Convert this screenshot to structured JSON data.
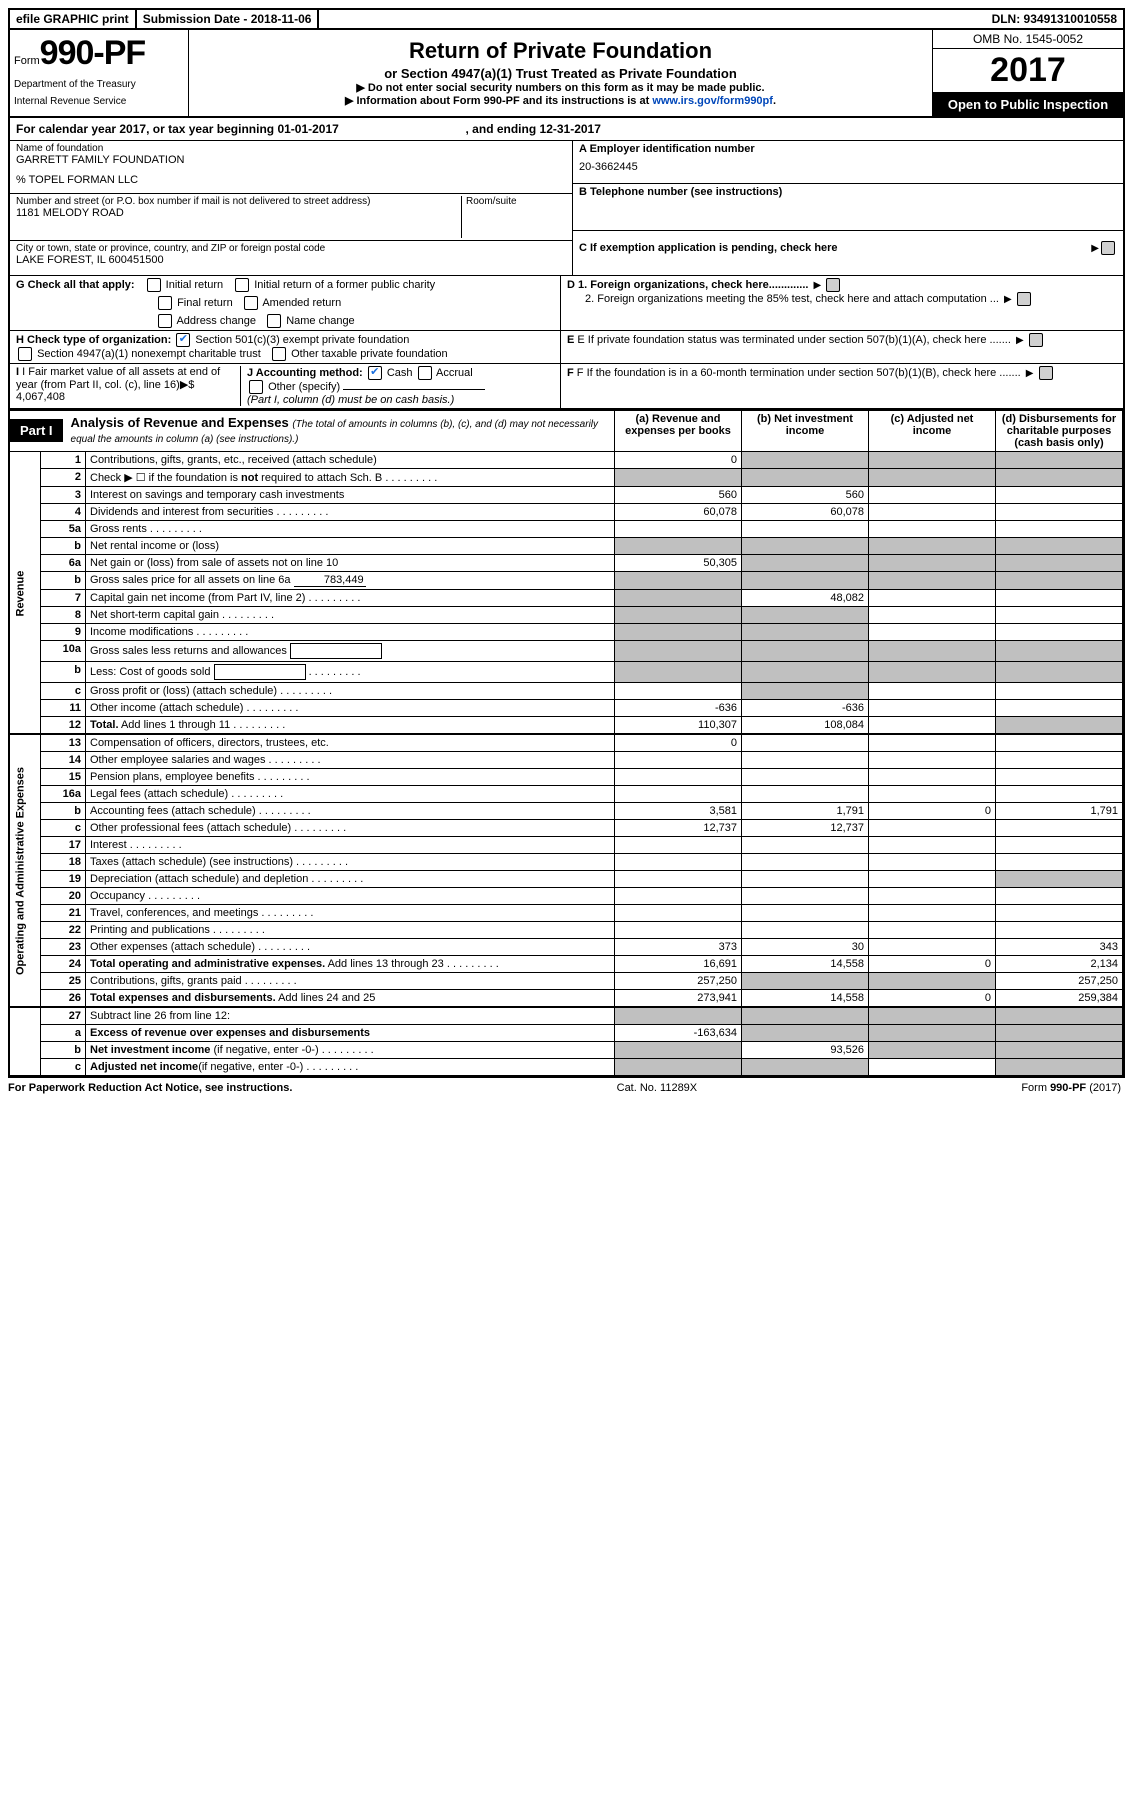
{
  "topbar": {
    "efile": "efile GRAPHIC print",
    "sub": "Submission Date - 2018-11-06",
    "dln": "DLN: 93491310010558"
  },
  "header": {
    "form_prefix": "Form",
    "form_num": "990-PF",
    "dept1": "Department of the Treasury",
    "dept2": "Internal Revenue Service",
    "title": "Return of Private Foundation",
    "subtitle": "or Section 4947(a)(1) Trust Treated as Private Foundation",
    "note1": "▶ Do not enter social security numbers on this form as it may be made public.",
    "note2": "▶ Information about Form 990-PF and its instructions is at ",
    "link": "www.irs.gov/form990pf",
    "omb": "OMB No. 1545-0052",
    "year": "2017",
    "open": "Open to Public Inspection"
  },
  "cal": {
    "text1": "For calendar year 2017, or tax year beginning 01-01-2017",
    "text2": ", and ending 12-31-2017"
  },
  "id": {
    "name_lab": "Name of foundation",
    "name": "GARRETT FAMILY FOUNDATION",
    "care": "% TOPEL FORMAN LLC",
    "addr_lab": "Number and street (or P.O. box number if mail is not delivered to street address)",
    "room_lab": "Room/suite",
    "addr": "1181 MELODY ROAD",
    "city_lab": "City or town, state or province, country, and ZIP or foreign postal code",
    "city": "LAKE FOREST, IL  600451500",
    "a_lab": "A Employer identification number",
    "a": "20-3662445",
    "b_lab": "B Telephone number (see instructions)",
    "c_lab": "C If exemption application is pending, check here",
    "d1": "D 1. Foreign organizations, check here.............",
    "d2": "2. Foreign organizations meeting the 85% test, check here and attach computation ...",
    "e": "E   If private foundation status was terminated under section 507(b)(1)(A), check here .......",
    "f": "F   If the foundation is in a 60-month termination under section 507(b)(1)(B), check here .......",
    "g": "G Check all that apply:",
    "g_opts": [
      "Initial return",
      "Initial return of a former public charity",
      "Final return",
      "Amended return",
      "Address change",
      "Name change"
    ],
    "h": "H Check type of organization:",
    "h1": "Section 501(c)(3) exempt private foundation",
    "h2": "Section 4947(a)(1) nonexempt charitable trust",
    "h3": "Other taxable private foundation",
    "i": "I Fair market value of all assets at end of year (from Part II, col. (c), line 16)▶$  4,067,408",
    "j": "J Accounting method:",
    "j1": "Cash",
    "j2": "Accrual",
    "j3": "Other (specify)",
    "jnote": "(Part I, column (d) must be on cash basis.)"
  },
  "part1": {
    "label": "Part I",
    "title": "Analysis of Revenue and Expenses",
    "note": "(The total of amounts in columns (b), (c), and (d) may not necessarily equal the amounts in column (a) (see instructions).)",
    "col_a": "(a)   Revenue and expenses per books",
    "col_b": "(b)  Net investment income",
    "col_c": "(c)  Adjusted net income",
    "col_d": "(d)  Disbursements for charitable purposes (cash basis only)"
  },
  "sections": {
    "rev": "Revenue",
    "oae": "Operating and Administrative Expenses"
  },
  "rows": [
    {
      "n": "1",
      "d": "Contributions, gifts, grants, etc., received (attach schedule)",
      "a": "0",
      "shade": [
        "b",
        "c",
        "d"
      ]
    },
    {
      "n": "2",
      "d": "Check ▶ ☐ if the foundation is <b>not</b> required to attach Sch. B",
      "dots": true,
      "shade": [
        "a",
        "b",
        "c",
        "d"
      ]
    },
    {
      "n": "3",
      "d": "Interest on savings and temporary cash investments",
      "a": "560",
      "b": "560"
    },
    {
      "n": "4",
      "d": "Dividends and interest from securities",
      "dots": true,
      "a": "60,078",
      "b": "60,078"
    },
    {
      "n": "5a",
      "d": "Gross rents",
      "dots": true
    },
    {
      "n": "b",
      "d": "Net rental income or (loss)",
      "under": true,
      "shade": [
        "a",
        "b",
        "c",
        "d"
      ]
    },
    {
      "n": "6a",
      "d": "Net gain or (loss) from sale of assets not on line 10",
      "a": "50,305",
      "shade": [
        "b",
        "c",
        "d"
      ]
    },
    {
      "n": "b",
      "d": "Gross sales price for all assets on line 6a",
      "inline": "783,449",
      "shade": [
        "a",
        "b",
        "c",
        "d"
      ]
    },
    {
      "n": "7",
      "d": "Capital gain net income (from Part IV, line 2)",
      "dots": true,
      "b": "48,082",
      "shade": [
        "a"
      ]
    },
    {
      "n": "8",
      "d": "Net short-term capital gain",
      "dots": true,
      "shade": [
        "a",
        "b"
      ]
    },
    {
      "n": "9",
      "d": "Income modifications",
      "dots": true,
      "shade": [
        "a",
        "b"
      ]
    },
    {
      "n": "10a",
      "d": "Gross sales less returns and allowances",
      "box": true,
      "shade": [
        "a",
        "b",
        "c",
        "d"
      ]
    },
    {
      "n": "b",
      "d": "Less: Cost of goods sold",
      "dots": true,
      "box": true,
      "shade": [
        "a",
        "b",
        "c",
        "d"
      ]
    },
    {
      "n": "c",
      "d": "Gross profit or (loss) (attach schedule)",
      "dots": true,
      "shade": [
        "b"
      ]
    },
    {
      "n": "11",
      "d": "Other income (attach schedule)",
      "dots": true,
      "a": "-636",
      "b": "-636"
    },
    {
      "n": "12",
      "d": "<b>Total.</b> Add lines 1 through 11",
      "dots": true,
      "a": "110,307",
      "b": "108,084",
      "shade": [
        "d"
      ]
    }
  ],
  "rows2": [
    {
      "n": "13",
      "d": "Compensation of officers, directors, trustees, etc.",
      "a": "0"
    },
    {
      "n": "14",
      "d": "Other employee salaries and wages",
      "dots": true
    },
    {
      "n": "15",
      "d": "Pension plans, employee benefits",
      "dots": true
    },
    {
      "n": "16a",
      "d": "Legal fees (attach schedule)",
      "dots": true
    },
    {
      "n": "b",
      "d": "Accounting fees (attach schedule)",
      "dots": true,
      "a": "3,581",
      "b": "1,791",
      "c": "0",
      "dcol": "1,791"
    },
    {
      "n": "c",
      "d": "Other professional fees (attach schedule)",
      "dots": true,
      "a": "12,737",
      "b": "12,737"
    },
    {
      "n": "17",
      "d": "Interest",
      "dots": true
    },
    {
      "n": "18",
      "d": "Taxes (attach schedule) (see instructions)",
      "dots": true
    },
    {
      "n": "19",
      "d": "Depreciation (attach schedule) and depletion",
      "dots": true,
      "shade": [
        "d"
      ]
    },
    {
      "n": "20",
      "d": "Occupancy",
      "dots": true
    },
    {
      "n": "21",
      "d": "Travel, conferences, and meetings",
      "dots": true
    },
    {
      "n": "22",
      "d": "Printing and publications",
      "dots": true
    },
    {
      "n": "23",
      "d": "Other expenses (attach schedule)",
      "dots": true,
      "a": "373",
      "b": "30",
      "dcol": "343"
    },
    {
      "n": "24",
      "d": "<b>Total operating and administrative expenses.</b> Add lines 13 through 23",
      "dots": true,
      "a": "16,691",
      "b": "14,558",
      "c": "0",
      "dcol": "2,134"
    },
    {
      "n": "25",
      "d": "Contributions, gifts, grants paid",
      "dots": true,
      "a": "257,250",
      "shade": [
        "b",
        "c"
      ],
      "dcol": "257,250"
    },
    {
      "n": "26",
      "d": "<b>Total expenses and disbursements.</b> Add lines 24 and 25",
      "a": "273,941",
      "b": "14,558",
      "c": "0",
      "dcol": "259,384"
    }
  ],
  "rows3": [
    {
      "n": "27",
      "d": "Subtract line 26 from line 12:",
      "shade": [
        "a",
        "b",
        "c",
        "d"
      ]
    },
    {
      "n": "a",
      "d": "<b>Excess of revenue over expenses and disbursements</b>",
      "a": "-163,634",
      "shade": [
        "b",
        "c",
        "d"
      ]
    },
    {
      "n": "b",
      "d": "<b>Net investment income</b> (if negative, enter -0-)",
      "dots": true,
      "b": "93,526",
      "shade": [
        "a",
        "c",
        "d"
      ]
    },
    {
      "n": "c",
      "d": "<b>Adjusted net income</b>(if negative, enter -0-)",
      "dots": true,
      "shade": [
        "a",
        "b",
        "d"
      ]
    }
  ],
  "footer": {
    "pra": "For Paperwork Reduction Act Notice, see instructions.",
    "cat": "Cat. No. 11289X",
    "form": "Form 990-PF (2017)"
  }
}
